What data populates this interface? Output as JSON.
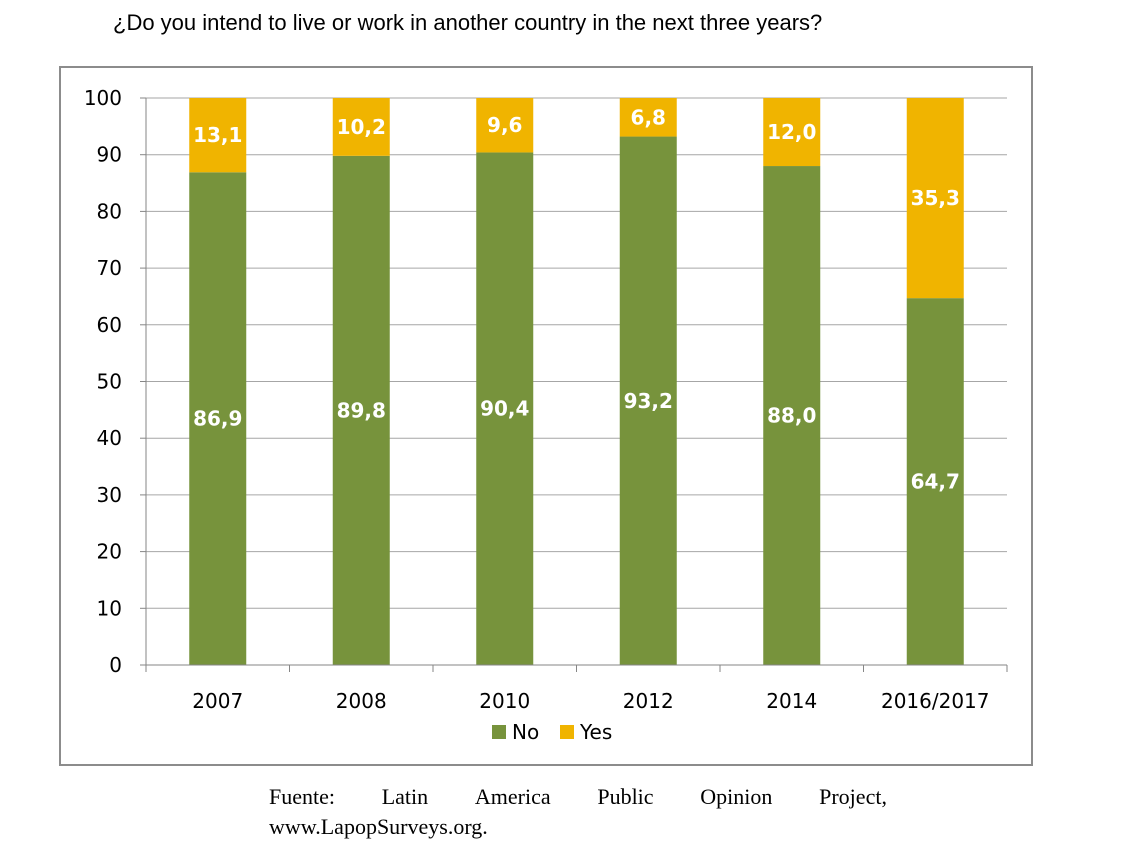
{
  "title": "¿Do you intend to live or work in another country in the next three years?",
  "source": {
    "words": [
      "Fuente:",
      "Latin",
      "America",
      "Public",
      "Opinion",
      "Project,"
    ],
    "line2": "www.LapopSurveys.org."
  },
  "colors": {
    "No": "#77933c",
    "Yes": "#f0b400",
    "grid": "#a6a6a6",
    "axis": "#868686",
    "label_text": "#ffffff",
    "tick_text": "#000000"
  },
  "chart_data": {
    "type": "bar",
    "stacked": true,
    "categories": [
      "2007",
      "2008",
      "2010",
      "2012",
      "2014",
      "2016/2017"
    ],
    "series": [
      {
        "name": "No",
        "values": [
          86.9,
          89.8,
          90.4,
          93.2,
          88.0,
          64.7
        ],
        "labels": [
          "86,9",
          "89,8",
          "90,4",
          "93,2",
          "88,0",
          "64,7"
        ]
      },
      {
        "name": "Yes",
        "values": [
          13.1,
          10.2,
          9.6,
          6.8,
          12.0,
          35.3
        ],
        "labels": [
          "13,1",
          "10,2",
          "9,6",
          "6,8",
          "12,0",
          "35,3"
        ]
      }
    ],
    "ylim": [
      0,
      100
    ],
    "yticks": [
      0,
      10,
      20,
      30,
      40,
      50,
      60,
      70,
      80,
      90,
      100
    ],
    "grid": true,
    "legend": "bottom"
  }
}
